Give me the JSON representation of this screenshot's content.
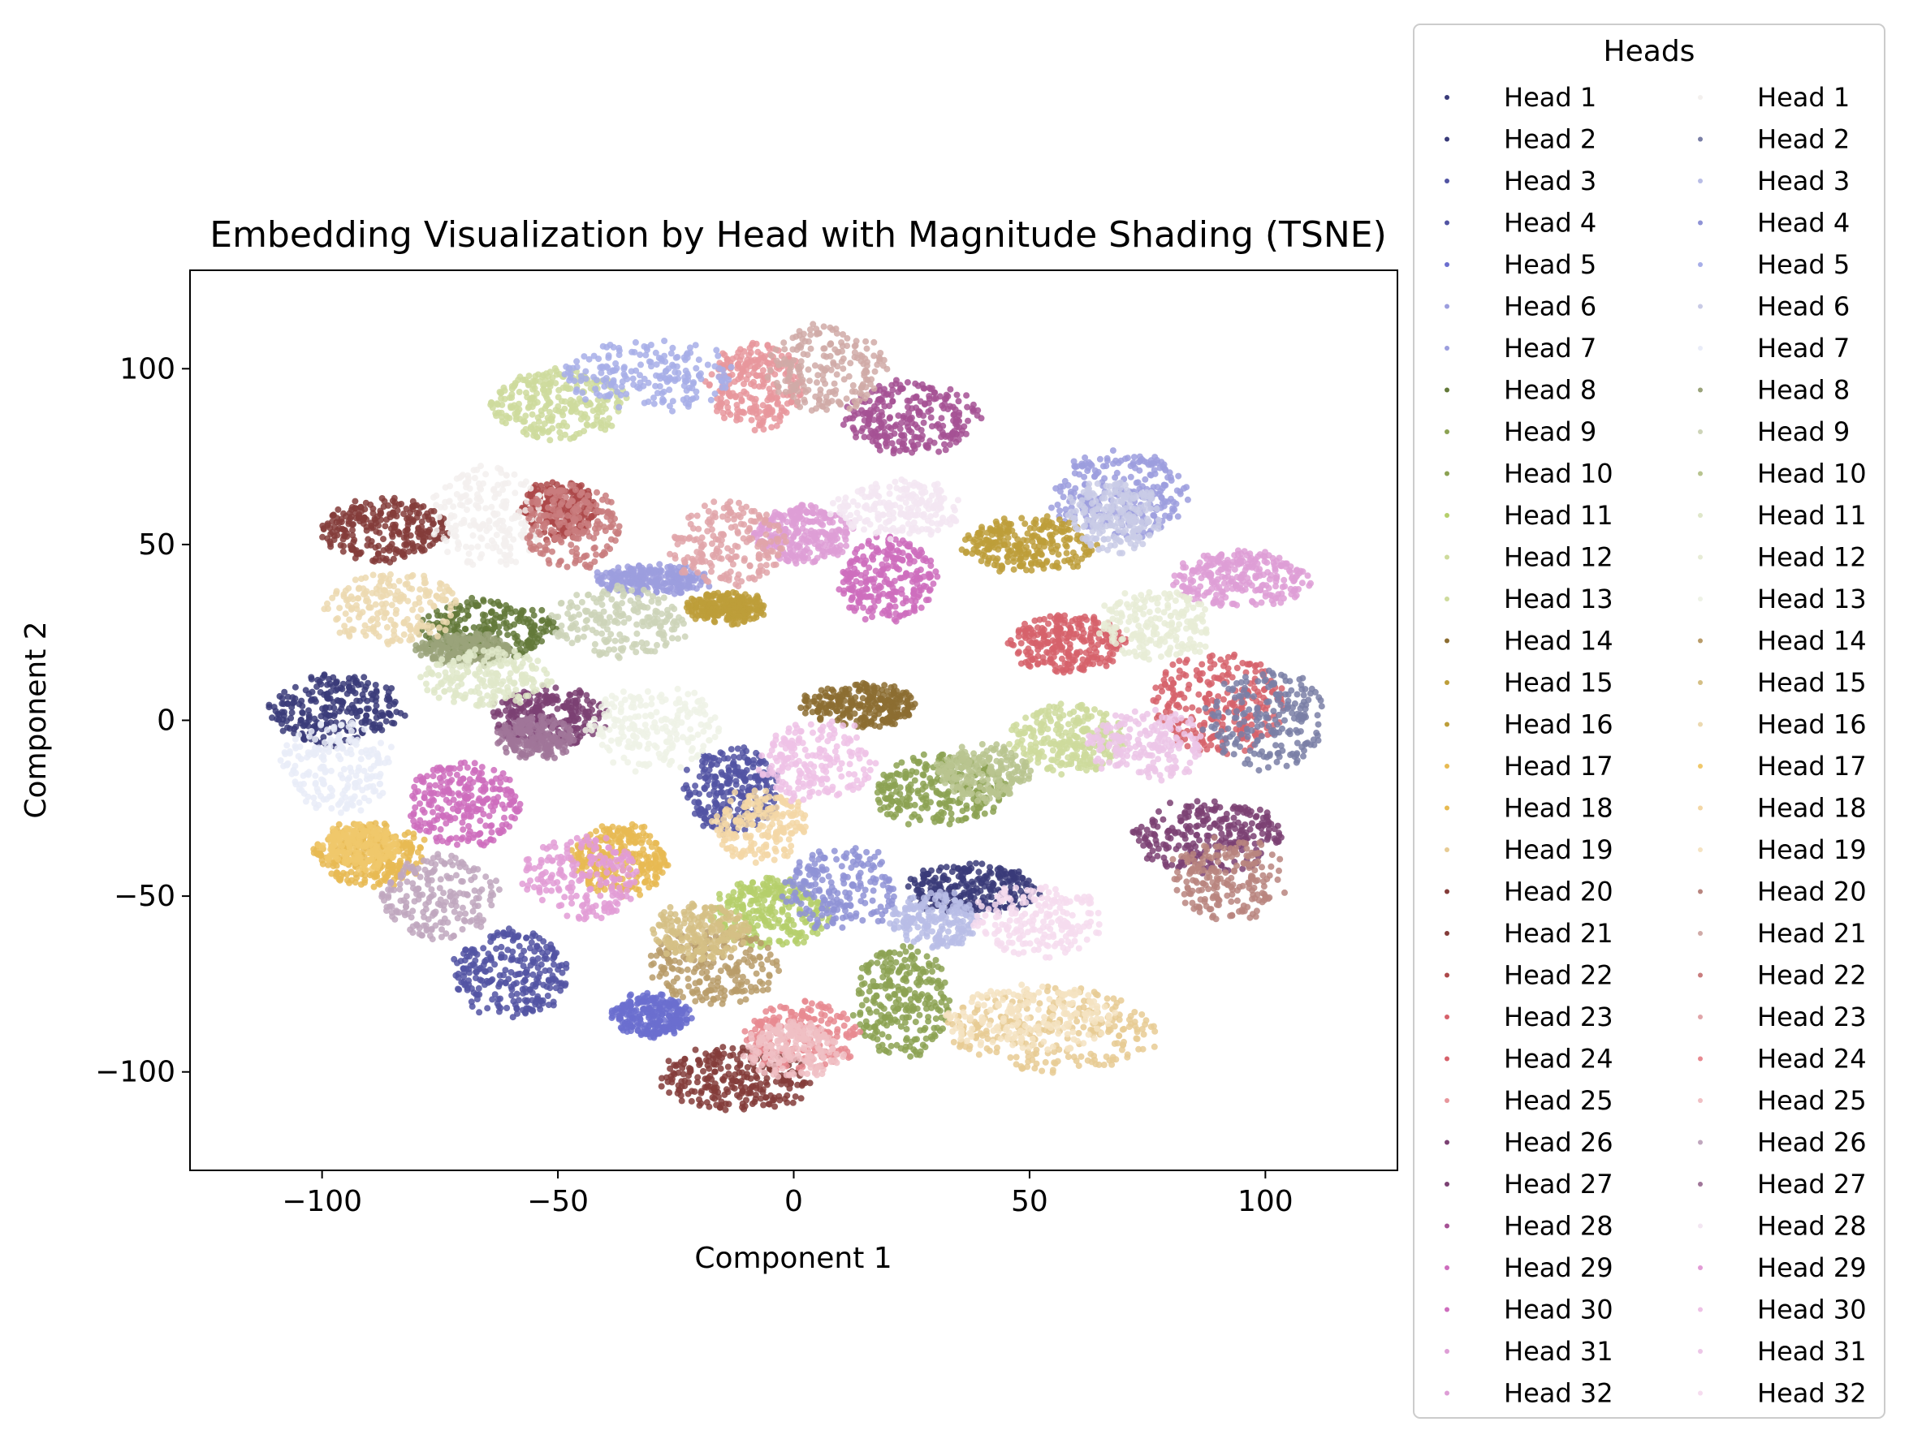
{
  "chart_data": {
    "type": "scatter",
    "title": "Embedding Visualization by Head with Magnitude Shading (TSNE)",
    "xlabel": "Component 1",
    "ylabel": "Component 2",
    "xlim": [
      -128,
      128
    ],
    "ylim": [
      -128,
      128
    ],
    "xticks": [
      -100,
      -50,
      0,
      50,
      100
    ],
    "yticks": [
      -100,
      -50,
      0,
      50,
      100
    ],
    "xtick_labels": [
      "−100",
      "−50",
      "0",
      "50",
      "100"
    ],
    "ytick_labels": [
      "−100",
      "−50",
      "0",
      "50",
      "100"
    ],
    "grid": false,
    "legend": {
      "title": "Heads",
      "placement": "right",
      "columns": 2
    },
    "series": [
      {
        "name": "Head 1",
        "color": "#393b79",
        "cluster": {
          "x": -97,
          "y": 3,
          "rx": 14,
          "ry": 10
        }
      },
      {
        "name": "Head 2",
        "color": "#393b79",
        "cluster": {
          "x": 38,
          "y": -48,
          "rx": 14,
          "ry": 7
        }
      },
      {
        "name": "Head 3",
        "color": "#5254a3",
        "cluster": {
          "x": -60,
          "y": -72,
          "rx": 12,
          "ry": 12
        }
      },
      {
        "name": "Head 4",
        "color": "#5254a3",
        "cluster": {
          "x": -13,
          "y": -20,
          "rx": 10,
          "ry": 12
        }
      },
      {
        "name": "Head 5",
        "color": "#6b6ecf",
        "cluster": {
          "x": -30,
          "y": -84,
          "rx": 8,
          "ry": 6
        }
      },
      {
        "name": "Head 6",
        "color": "#9c9ede",
        "cluster": {
          "x": 69,
          "y": 64,
          "rx": 14,
          "ry": 12
        }
      },
      {
        "name": "Head 7",
        "color": "#9c9ede",
        "cluster": {
          "x": -30,
          "y": 40,
          "rx": 12,
          "ry": 4
        }
      },
      {
        "name": "Head 8",
        "color": "#637939",
        "cluster": {
          "x": -65,
          "y": 26,
          "rx": 14,
          "ry": 8
        }
      },
      {
        "name": "Head 9",
        "color": "#8ca252",
        "cluster": {
          "x": 23,
          "y": -80,
          "rx": 10,
          "ry": 16
        }
      },
      {
        "name": "Head 10",
        "color": "#8ca252",
        "cluster": {
          "x": 31,
          "y": -20,
          "rx": 14,
          "ry": 10
        }
      },
      {
        "name": "Head 11",
        "color": "#b5cf6b",
        "cluster": {
          "x": -5,
          "y": -55,
          "rx": 12,
          "ry": 10
        }
      },
      {
        "name": "Head 12",
        "color": "#cedb9c",
        "cluster": {
          "x": -50,
          "y": 90,
          "rx": 14,
          "ry": 10
        }
      },
      {
        "name": "Head 13",
        "color": "#cedb9c",
        "cluster": {
          "x": 58,
          "y": -5,
          "rx": 12,
          "ry": 10
        }
      },
      {
        "name": "Head 14",
        "color": "#8c6d31",
        "cluster": {
          "x": 14,
          "y": 4,
          "rx": 12,
          "ry": 6
        }
      },
      {
        "name": "Head 15",
        "color": "#bd9e39",
        "cluster": {
          "x": 50,
          "y": 50,
          "rx": 14,
          "ry": 8
        }
      },
      {
        "name": "Head 16",
        "color": "#bd9e39",
        "cluster": {
          "x": -14,
          "y": 32,
          "rx": 8,
          "ry": 4
        }
      },
      {
        "name": "Head 17",
        "color": "#e7ba52",
        "cluster": {
          "x": -90,
          "y": -38,
          "rx": 12,
          "ry": 9
        }
      },
      {
        "name": "Head 18",
        "color": "#e7ba52",
        "cluster": {
          "x": -37,
          "y": -40,
          "rx": 10,
          "ry": 10
        }
      },
      {
        "name": "Head 19",
        "color": "#e7cb94",
        "cluster": {
          "x": 55,
          "y": -88,
          "rx": 22,
          "ry": 12
        }
      },
      {
        "name": "Head 20",
        "color": "#843c39",
        "cluster": {
          "x": -87,
          "y": 54,
          "rx": 14,
          "ry": 9
        }
      },
      {
        "name": "Head 21",
        "color": "#843c39",
        "cluster": {
          "x": -12,
          "y": -102,
          "rx": 16,
          "ry": 9
        }
      },
      {
        "name": "Head 22",
        "color": "#ad494a",
        "cluster": {
          "x": -50,
          "y": 60,
          "rx": 8,
          "ry": 8
        }
      },
      {
        "name": "Head 23",
        "color": "#d6616b",
        "cluster": {
          "x": 90,
          "y": 5,
          "rx": 14,
          "ry": 14
        }
      },
      {
        "name": "Head 24",
        "color": "#d6616b",
        "cluster": {
          "x": 58,
          "y": 22,
          "rx": 12,
          "ry": 8
        }
      },
      {
        "name": "Head 25",
        "color": "#e7969c",
        "cluster": {
          "x": -8,
          "y": 95,
          "rx": 10,
          "ry": 12
        }
      },
      {
        "name": "Head 26",
        "color": "#7b4173",
        "cluster": {
          "x": 88,
          "y": -33,
          "rx": 16,
          "ry": 10
        }
      },
      {
        "name": "Head 27",
        "color": "#7b4173",
        "cluster": {
          "x": -52,
          "y": 1,
          "rx": 12,
          "ry": 8
        }
      },
      {
        "name": "Head 28",
        "color": "#a55194",
        "cluster": {
          "x": 25,
          "y": 86,
          "rx": 14,
          "ry": 10
        }
      },
      {
        "name": "Head 29",
        "color": "#ce6dbd",
        "cluster": {
          "x": -70,
          "y": -24,
          "rx": 12,
          "ry": 12
        }
      },
      {
        "name": "Head 30",
        "color": "#ce6dbd",
        "cluster": {
          "x": 20,
          "y": 40,
          "rx": 10,
          "ry": 12
        }
      },
      {
        "name": "Head 31",
        "color": "#de9ed6",
        "cluster": {
          "x": 95,
          "y": 40,
          "rx": 14,
          "ry": 8
        }
      },
      {
        "name": "Head 32",
        "color": "#de9ed6",
        "cluster": {
          "x": 2,
          "y": 53,
          "rx": 10,
          "ry": 8
        }
      }
    ],
    "shading_series": [
      {
        "name": "Head 1",
        "color": "#f3f0ee",
        "cluster": {
          "x": -65,
          "y": 58,
          "rx": 12,
          "ry": 15
        }
      },
      {
        "name": "Head 2",
        "color": "#7a7fa6",
        "cluster": {
          "x": 100,
          "y": 0,
          "rx": 13,
          "ry": 14
        }
      },
      {
        "name": "Head 3",
        "color": "#b9bde6",
        "cluster": {
          "x": 30,
          "y": -57,
          "rx": 9,
          "ry": 8
        }
      },
      {
        "name": "Head 4",
        "color": "#8f93d6",
        "cluster": {
          "x": 10,
          "y": -48,
          "rx": 12,
          "ry": 12
        }
      },
      {
        "name": "Head 5",
        "color": "#a7aee8",
        "cluster": {
          "x": -30,
          "y": 98,
          "rx": 18,
          "ry": 10
        }
      },
      {
        "name": "Head 6",
        "color": "#c9cbe6",
        "cluster": {
          "x": 68,
          "y": 58,
          "rx": 10,
          "ry": 10
        }
      },
      {
        "name": "Head 7",
        "color": "#e9ecf8",
        "cluster": {
          "x": -97,
          "y": -13,
          "rx": 12,
          "ry": 13
        }
      },
      {
        "name": "Head 8",
        "color": "#9aa37a",
        "cluster": {
          "x": -70,
          "y": 20,
          "rx": 10,
          "ry": 4
        }
      },
      {
        "name": "Head 9",
        "color": "#cdd4b8",
        "cluster": {
          "x": -37,
          "y": 28,
          "rx": 14,
          "ry": 10
        }
      },
      {
        "name": "Head 10",
        "color": "#b8c48f",
        "cluster": {
          "x": 40,
          "y": -15,
          "rx": 10,
          "ry": 8
        }
      },
      {
        "name": "Head 11",
        "color": "#dfe7c9",
        "cluster": {
          "x": -65,
          "y": 12,
          "rx": 14,
          "ry": 8
        }
      },
      {
        "name": "Head 12",
        "color": "#e7ecd6",
        "cluster": {
          "x": 77,
          "y": 27,
          "rx": 12,
          "ry": 10
        }
      },
      {
        "name": "Head 13",
        "color": "#eef2e6",
        "cluster": {
          "x": -30,
          "y": -2,
          "rx": 14,
          "ry": 12
        }
      },
      {
        "name": "Head 14",
        "color": "#b99c6a",
        "cluster": {
          "x": -17,
          "y": -70,
          "rx": 14,
          "ry": 10
        }
      },
      {
        "name": "Head 15",
        "color": "#d5bf85",
        "cluster": {
          "x": -20,
          "y": -60,
          "rx": 10,
          "ry": 8
        }
      },
      {
        "name": "Head 16",
        "color": "#ecd9b0",
        "cluster": {
          "x": -85,
          "y": 32,
          "rx": 14,
          "ry": 10
        }
      },
      {
        "name": "Head 17",
        "color": "#f0c86b",
        "cluster": {
          "x": -92,
          "y": -36,
          "rx": 8,
          "ry": 6
        }
      },
      {
        "name": "Head 18",
        "color": "#f3d7a6",
        "cluster": {
          "x": -7,
          "y": -30,
          "rx": 10,
          "ry": 10
        }
      },
      {
        "name": "Head 19",
        "color": "#f5e3c2",
        "cluster": {
          "x": 50,
          "y": -85,
          "rx": 18,
          "ry": 9
        }
      },
      {
        "name": "Head 20",
        "color": "#b8857f",
        "cluster": {
          "x": 92,
          "y": -45,
          "rx": 12,
          "ry": 12
        }
      },
      {
        "name": "Head 21",
        "color": "#d0aaa7",
        "cluster": {
          "x": 7,
          "y": 100,
          "rx": 12,
          "ry": 12
        }
      },
      {
        "name": "Head 22",
        "color": "#c97d7e",
        "cluster": {
          "x": -47,
          "y": 55,
          "rx": 10,
          "ry": 12
        }
      },
      {
        "name": "Head 23",
        "color": "#e0a5a9",
        "cluster": {
          "x": -14,
          "y": 50,
          "rx": 12,
          "ry": 12
        }
      },
      {
        "name": "Head 24",
        "color": "#e88a91",
        "cluster": {
          "x": 2,
          "y": -90,
          "rx": 12,
          "ry": 10
        }
      },
      {
        "name": "Head 25",
        "color": "#f0c0c4",
        "cluster": {
          "x": 0,
          "y": -94,
          "rx": 10,
          "ry": 8
        }
      },
      {
        "name": "Head 26",
        "color": "#c0a7be",
        "cluster": {
          "x": -75,
          "y": -50,
          "rx": 12,
          "ry": 12
        }
      },
      {
        "name": "Head 27",
        "color": "#a07699",
        "cluster": {
          "x": -55,
          "y": -5,
          "rx": 8,
          "ry": 6
        }
      },
      {
        "name": "Head 28",
        "color": "#f3e6f2",
        "cluster": {
          "x": 22,
          "y": 60,
          "rx": 14,
          "ry": 8
        }
      },
      {
        "name": "Head 29",
        "color": "#e29cd6",
        "cluster": {
          "x": -45,
          "y": -45,
          "rx": 12,
          "ry": 12
        }
      },
      {
        "name": "Head 30",
        "color": "#eec2e6",
        "cluster": {
          "x": 5,
          "y": -12,
          "rx": 12,
          "ry": 12
        }
      },
      {
        "name": "Head 31",
        "color": "#ecc6e7",
        "cluster": {
          "x": 75,
          "y": -7,
          "rx": 12,
          "ry": 10
        }
      },
      {
        "name": "Head 32",
        "color": "#f6dcef",
        "cluster": {
          "x": 52,
          "y": -57,
          "rx": 14,
          "ry": 10
        }
      }
    ]
  }
}
